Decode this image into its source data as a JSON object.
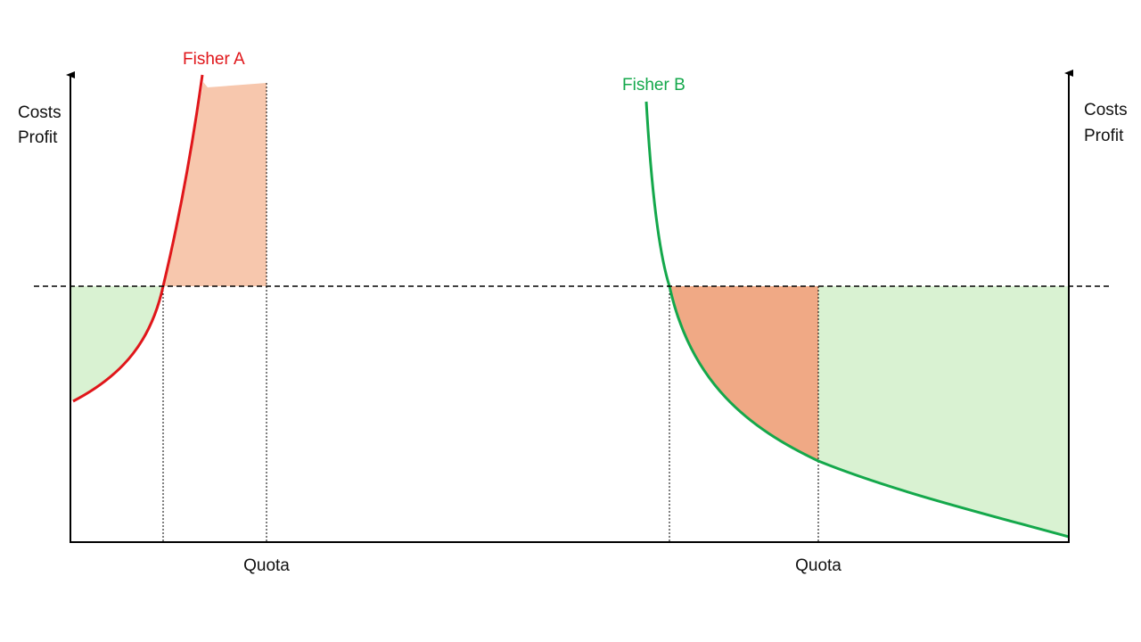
{
  "colors": {
    "fisher_a_curve": "#e0161a",
    "fisher_b_curve": "#14a84b",
    "cost_fill": "#f7c7ad",
    "loss_fill": "#f0a985",
    "profit_fill": "#d9f2d2",
    "axis": "#000000"
  },
  "fisher_a": {
    "name": "Fisher A",
    "y_axis_label_line1": "Costs",
    "y_axis_label_line2": "Profit",
    "x_marker_label": "Quota"
  },
  "fisher_b": {
    "name": "Fisher B",
    "y_axis_label_line1": "Costs",
    "y_axis_label_line2": "Profit",
    "x_marker_label": "Quota"
  }
}
